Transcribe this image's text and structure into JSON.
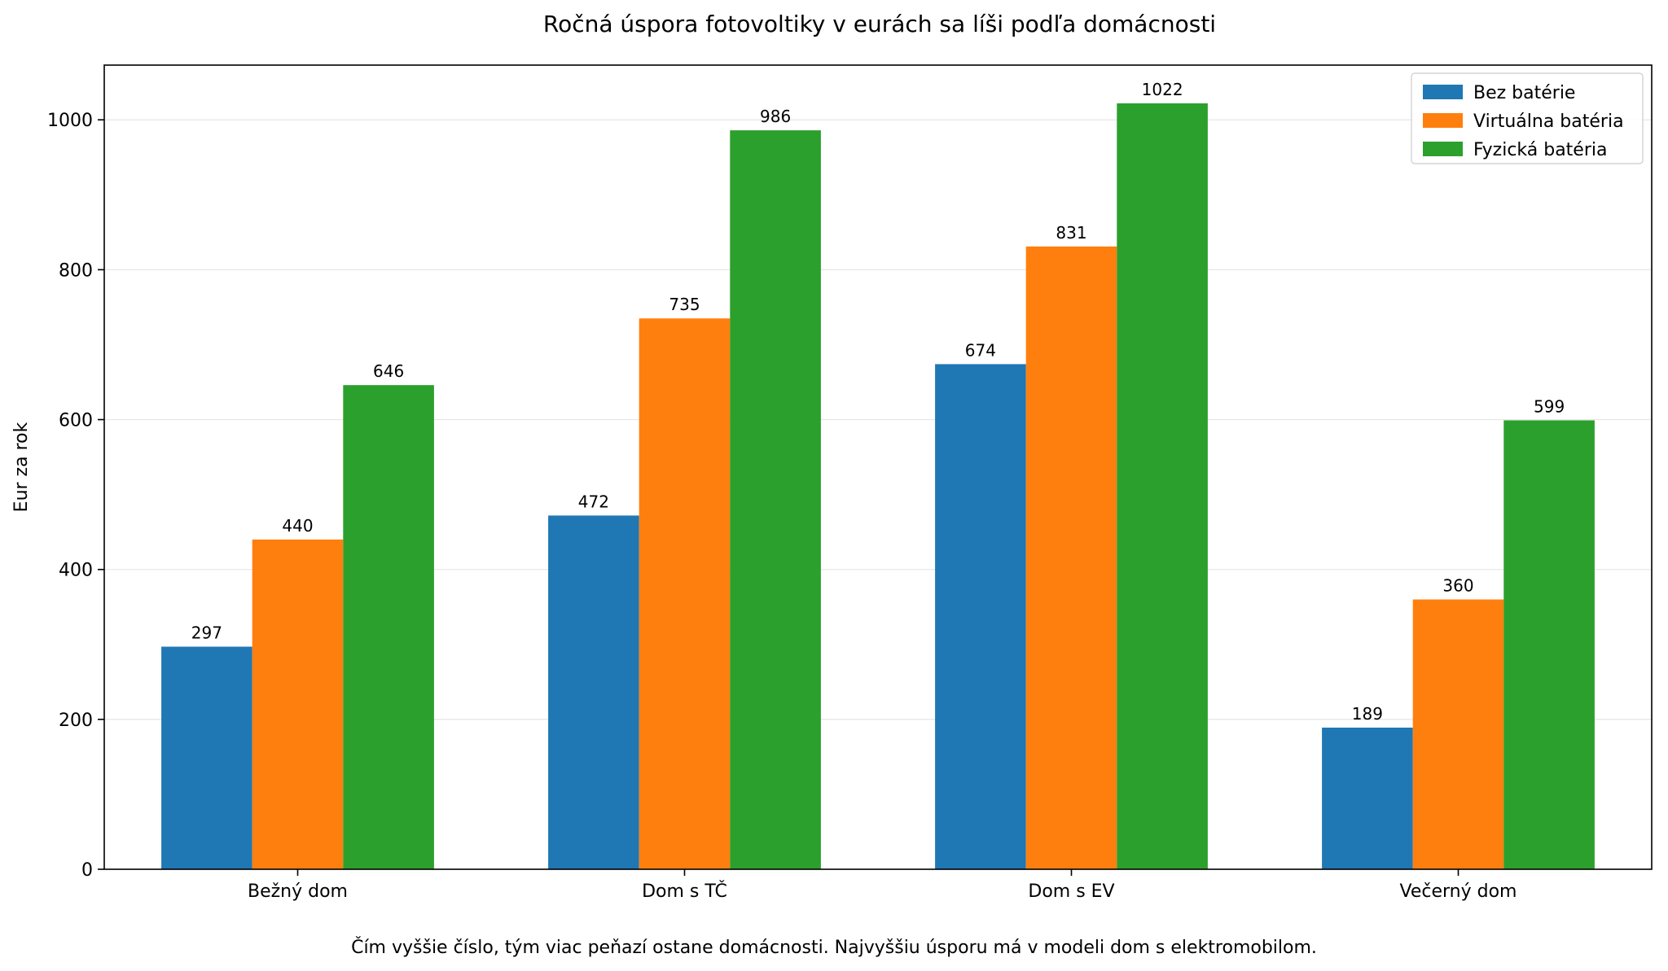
{
  "chart_data": {
    "type": "bar",
    "title": "Ročná úspora fotovoltiky v eurách sa líši podľa domácnosti",
    "xlabel": "",
    "ylabel": "Eur za rok",
    "caption": "Čím vyššie číslo, tým viac peňazí ostane domácnosti. Najvyššiu úsporu má v modeli dom s elektromobilom.",
    "categories": [
      "Bežný dom",
      "Dom s TČ",
      "Dom s EV",
      "Večerný dom"
    ],
    "series": [
      {
        "name": "Bez batérie",
        "color": "#1f77b4",
        "values": [
          297,
          472,
          674,
          189
        ]
      },
      {
        "name": "Virtuálna batéria",
        "color": "#ff7f0e",
        "values": [
          440,
          735,
          831,
          360
        ]
      },
      {
        "name": "Fyzická batéria",
        "color": "#2ca02c",
        "values": [
          646,
          986,
          1022,
          599
        ]
      }
    ],
    "ylim": [
      0,
      1073
    ],
    "yticks": [
      0,
      200,
      400,
      600,
      800,
      1000
    ],
    "grid": "horizontal",
    "legend_position": "top-right"
  }
}
